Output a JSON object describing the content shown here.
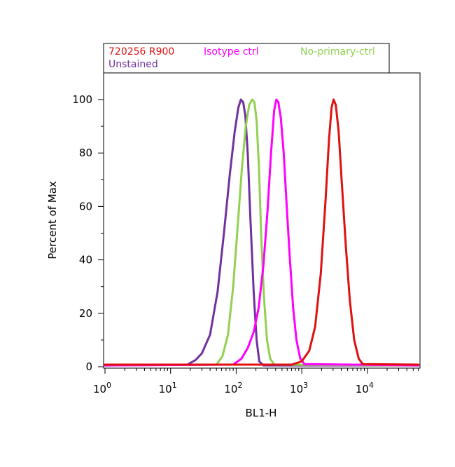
{
  "chart_data": {
    "type": "line",
    "xlabel": "BL1-H",
    "ylabel": "Percent of Max",
    "xscale": "log",
    "xlim": [
      1,
      60000
    ],
    "ylim": [
      0,
      110
    ],
    "x_ticks": [
      {
        "value": 1,
        "base": "10",
        "exp": "0"
      },
      {
        "value": 10,
        "base": "10",
        "exp": "1"
      },
      {
        "value": 100,
        "base": "10",
        "exp": "2"
      },
      {
        "value": 1000,
        "base": "10",
        "exp": "3"
      },
      {
        "value": 10000,
        "base": "10",
        "exp": "4"
      }
    ],
    "y_ticks": [
      0,
      20,
      40,
      60,
      80,
      100
    ],
    "grid": false,
    "legend_position": "top",
    "series": [
      {
        "name": "Unstained",
        "color": "#7030a0",
        "x": [
          1,
          18,
          24,
          30,
          40,
          52,
          65,
          80,
          95,
          108,
          118,
          128,
          138,
          150,
          165,
          185,
          205,
          225,
          260,
          60000
        ],
        "y": [
          0.5,
          0.8,
          2.5,
          5,
          12,
          28,
          50,
          72,
          88,
          97,
          100,
          99,
          94,
          80,
          55,
          28,
          10,
          2,
          0.5,
          0.5
        ]
      },
      {
        "name": "No-primary-ctrl",
        "color": "#92d050",
        "x": [
          1,
          50,
          62,
          75,
          90,
          105,
          122,
          140,
          158,
          175,
          190,
          205,
          222,
          240,
          265,
          295,
          330,
          380,
          60000
        ],
        "y": [
          0.5,
          0.8,
          4,
          12,
          30,
          52,
          74,
          90,
          98,
          100,
          99,
          92,
          75,
          50,
          26,
          10,
          3,
          0.8,
          0.5
        ]
      },
      {
        "name": "Isotype ctrl",
        "color": "#ff00ff",
        "x": [
          1,
          90,
          120,
          150,
          185,
          220,
          260,
          300,
          340,
          380,
          410,
          440,
          480,
          530,
          590,
          660,
          740,
          830,
          950,
          1100,
          60000
        ],
        "y": [
          0.5,
          0.8,
          3,
          7,
          13,
          22,
          38,
          58,
          80,
          96,
          100,
          99,
          93,
          80,
          60,
          40,
          22,
          10,
          3,
          1,
          0.5
        ]
      },
      {
        "name": "720256 R900",
        "color": "#e01010",
        "x": [
          1,
          700,
          1000,
          1300,
          1600,
          1950,
          2300,
          2600,
          2850,
          3050,
          3300,
          3650,
          4100,
          4700,
          5400,
          6300,
          7400,
          8500,
          60000
        ],
        "y": [
          0.8,
          0.8,
          2,
          6,
          15,
          35,
          62,
          85,
          97,
          100,
          98,
          88,
          68,
          45,
          25,
          10,
          3,
          1,
          0.8
        ]
      }
    ],
    "legend_rows": [
      [
        {
          "label": "720256 R900",
          "color": "#e01010"
        },
        {
          "label": "Isotype ctrl",
          "color": "#ff00ff"
        },
        {
          "label": "No-primary-ctrl",
          "color": "#92d050"
        }
      ],
      [
        {
          "label": "Unstained",
          "color": "#7030a0"
        }
      ]
    ]
  }
}
